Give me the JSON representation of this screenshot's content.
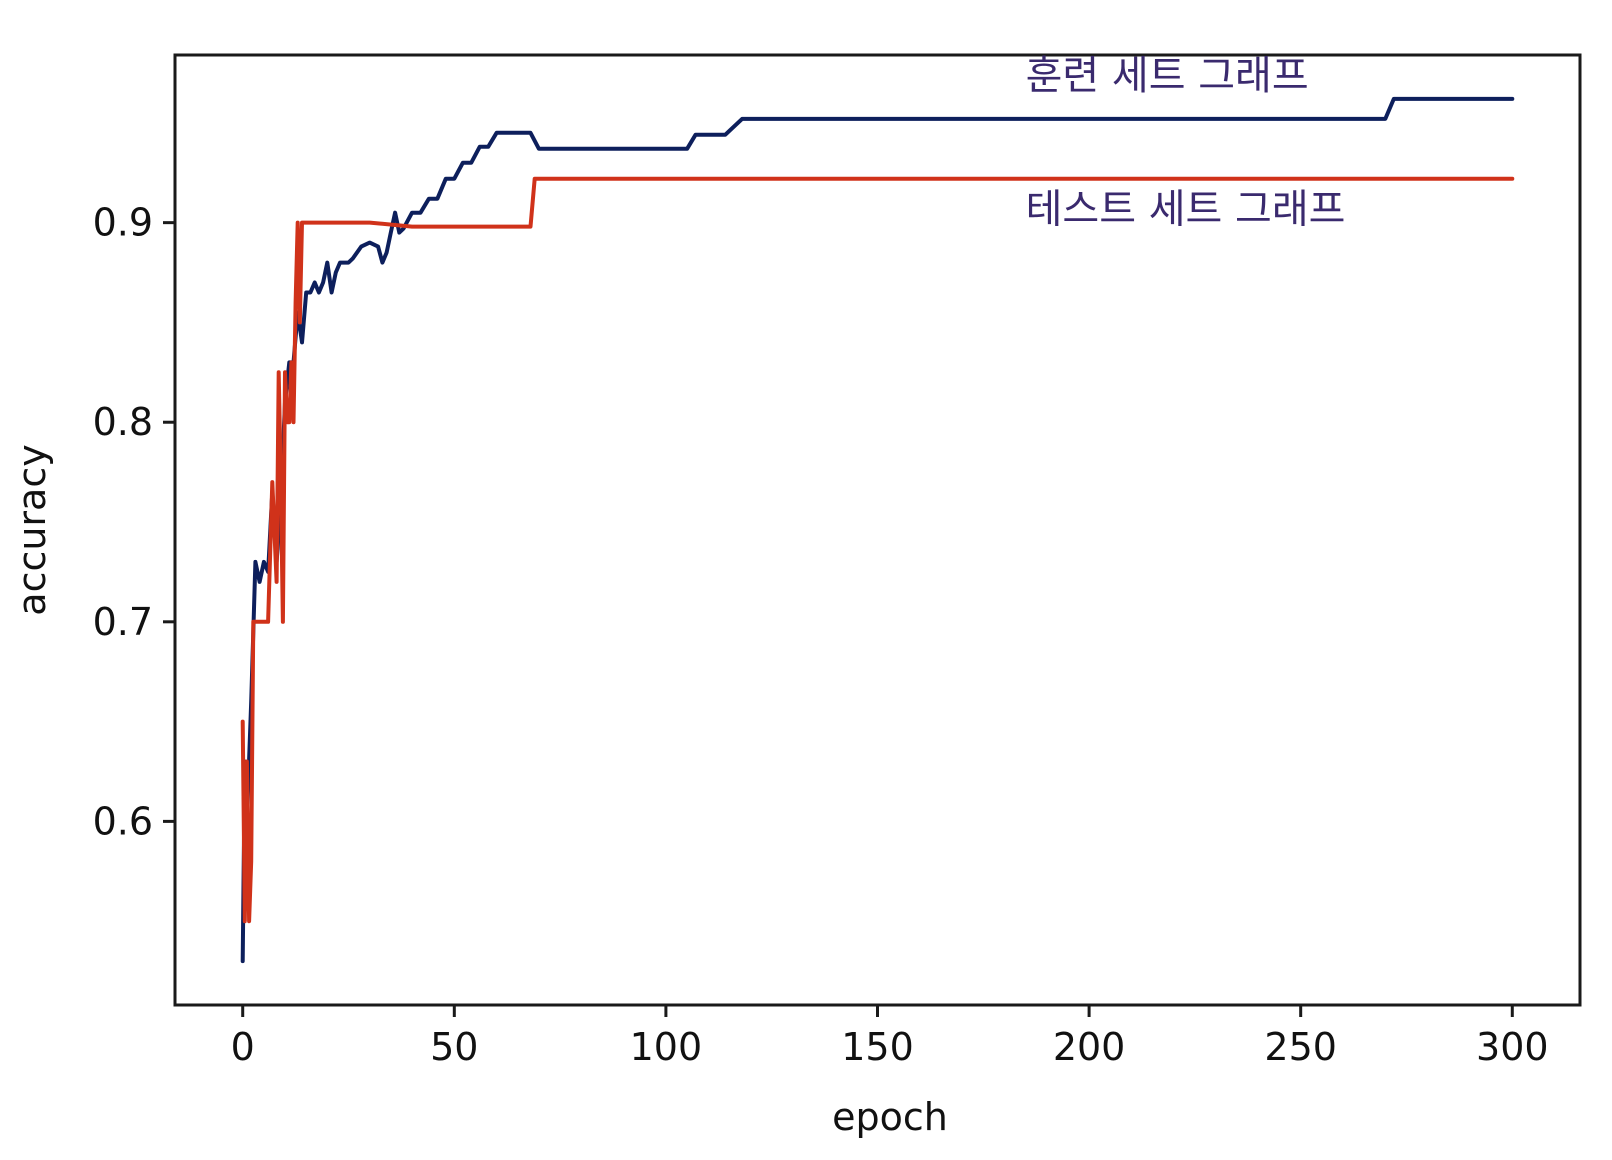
{
  "chart_data": {
    "type": "line",
    "title": "",
    "xlabel": "epoch",
    "ylabel": "accuracy",
    "xlim": [
      -16,
      316
    ],
    "ylim": [
      0.508,
      0.984
    ],
    "xticks": [
      0,
      50,
      100,
      150,
      200,
      250,
      300
    ],
    "yticks": [
      0.6,
      0.7,
      0.8,
      0.9
    ],
    "xtick_labels": [
      "0",
      "50",
      "100",
      "150",
      "200",
      "250",
      "300"
    ],
    "ytick_labels": [
      "0.6",
      "0.7",
      "0.8",
      "0.9"
    ],
    "grid": false,
    "legend": "none",
    "annotations": [
      {
        "text": "훈련 세트 그래프",
        "x": 185,
        "y": 0.967,
        "color": "#3a2a6e"
      },
      {
        "text": "테스트 세트 그래프",
        "x": 185,
        "y": 0.9,
        "color": "#3a2a6e"
      }
    ],
    "series": [
      {
        "color": "#0d1f5c",
        "x": [
          0,
          0.5,
          1,
          2,
          3,
          4,
          5,
          6,
          7,
          8,
          9,
          10,
          11,
          12,
          13,
          14,
          15,
          16,
          17,
          18,
          19,
          20,
          21,
          22,
          23,
          25,
          26,
          28,
          30,
          32,
          33,
          34,
          35,
          36,
          37,
          38,
          40,
          42,
          44,
          46,
          48,
          50,
          52,
          54,
          56,
          58,
          60,
          62,
          64,
          66,
          68,
          70,
          72,
          74,
          100,
          105,
          107,
          110,
          114,
          118,
          120,
          150,
          200,
          250,
          270,
          272,
          274,
          280,
          300
        ],
        "y": [
          0.53,
          0.63,
          0.6,
          0.66,
          0.73,
          0.72,
          0.73,
          0.725,
          0.765,
          0.73,
          0.76,
          0.81,
          0.83,
          0.83,
          0.855,
          0.84,
          0.865,
          0.865,
          0.87,
          0.865,
          0.87,
          0.88,
          0.865,
          0.875,
          0.88,
          0.88,
          0.882,
          0.888,
          0.89,
          0.888,
          0.88,
          0.885,
          0.895,
          0.905,
          0.895,
          0.897,
          0.905,
          0.905,
          0.912,
          0.912,
          0.922,
          0.922,
          0.93,
          0.93,
          0.938,
          0.938,
          0.945,
          0.945,
          0.945,
          0.945,
          0.945,
          0.937,
          0.937,
          0.937,
          0.937,
          0.937,
          0.944,
          0.944,
          0.944,
          0.952,
          0.952,
          0.952,
          0.952,
          0.952,
          0.952,
          0.962,
          0.962,
          0.962,
          0.962
        ]
      },
      {
        "color": "#d0321a",
        "x": [
          0,
          0.5,
          1,
          1.5,
          2,
          2.5,
          3,
          4,
          5,
          6,
          7,
          8,
          8.5,
          9,
          9.5,
          10,
          10.5,
          11,
          11.5,
          12,
          12.5,
          13,
          13.5,
          14,
          15,
          20,
          30,
          40,
          50,
          60,
          68,
          69,
          70,
          100,
          150,
          200,
          250,
          300
        ],
        "y": [
          0.65,
          0.55,
          0.63,
          0.55,
          0.58,
          0.7,
          0.7,
          0.7,
          0.7,
          0.7,
          0.77,
          0.72,
          0.825,
          0.77,
          0.7,
          0.825,
          0.8,
          0.8,
          0.83,
          0.8,
          0.86,
          0.9,
          0.85,
          0.9,
          0.9,
          0.9,
          0.9,
          0.898,
          0.898,
          0.898,
          0.898,
          0.922,
          0.922,
          0.922,
          0.922,
          0.922,
          0.922,
          0.922
        ]
      }
    ]
  }
}
